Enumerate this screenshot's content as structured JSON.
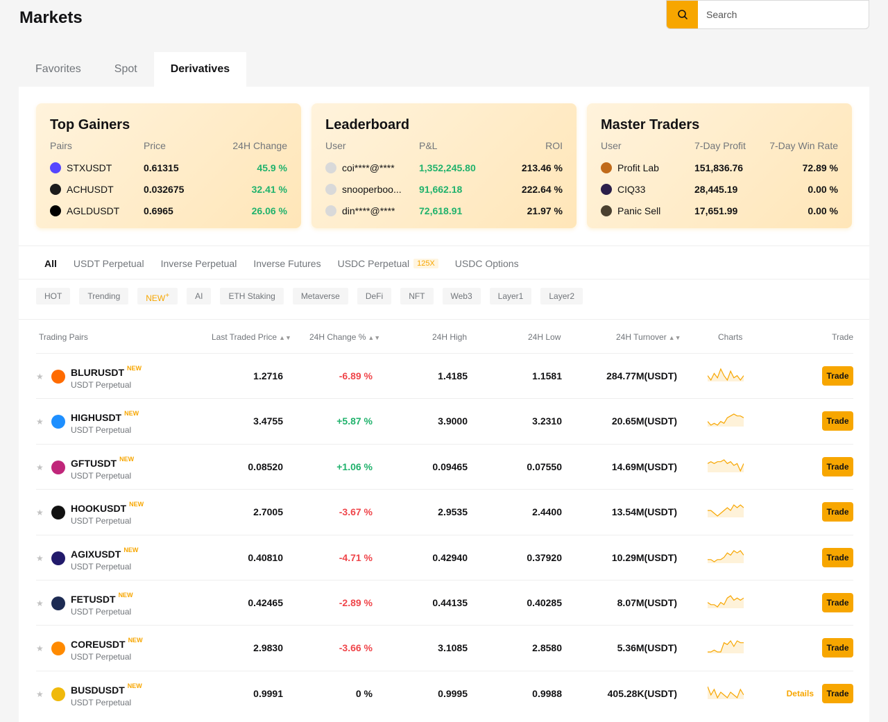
{
  "header": {
    "title": "Markets",
    "search_placeholder": "Search"
  },
  "top_tabs": [
    "Favorites",
    "Spot",
    "Derivatives"
  ],
  "cards": {
    "gainers": {
      "title": "Top Gainers",
      "headers": [
        "Pairs",
        "Price",
        "24H Change"
      ],
      "rows": [
        {
          "name": "STXUSDT",
          "price": "0.61315",
          "change": "45.9 %",
          "color": "#5546ff"
        },
        {
          "name": "ACHUSDT",
          "price": "0.032675",
          "change": "32.41 %",
          "color": "#1c1c1c"
        },
        {
          "name": "AGLDUSDT",
          "price": "0.6965",
          "change": "26.06 %",
          "color": "#000000"
        }
      ]
    },
    "leaderboard": {
      "title": "Leaderboard",
      "headers": [
        "User",
        "P&L",
        "ROI"
      ],
      "rows": [
        {
          "name": "coi****@****",
          "pnl": "1,352,245.80",
          "roi": "213.46 %"
        },
        {
          "name": "snooperboo...",
          "pnl": "91,662.18",
          "roi": "222.64 %"
        },
        {
          "name": "din****@****",
          "pnl": "72,618.91",
          "roi": "21.97 %"
        }
      ]
    },
    "masters": {
      "title": "Master Traders",
      "headers": [
        "User",
        "7-Day Profit",
        "7-Day Win Rate"
      ],
      "rows": [
        {
          "name": "Profit Lab",
          "profit": "151,836.76",
          "rate": "72.89 %",
          "color": "#c06a1a"
        },
        {
          "name": "CIQ33",
          "profit": "28,445.19",
          "rate": "0.00 %",
          "color": "#2b1f4a"
        },
        {
          "name": "Panic Sell",
          "profit": "17,651.99",
          "rate": "0.00 %",
          "color": "#4a4030"
        }
      ]
    }
  },
  "category_tabs": [
    "All",
    "USDT Perpetual",
    "Inverse Perpetual",
    "Inverse Futures",
    "USDC Perpetual",
    "USDC Options"
  ],
  "usdc_badge": "125X",
  "chips": [
    "HOT",
    "Trending",
    "NEW",
    "AI",
    "ETH Staking",
    "Metaverse",
    "DeFi",
    "NFT",
    "Web3",
    "Layer1",
    "Layer2"
  ],
  "table": {
    "headers": {
      "pairs": "Trading Pairs",
      "price": "Last Traded Price",
      "change": "24H Change %",
      "high": "24H High",
      "low": "24H Low",
      "turnover": "24H Turnover",
      "charts": "Charts",
      "trade": "Trade"
    },
    "new_label": "NEW",
    "trade_label": "Trade",
    "details_label": "Details",
    "rows": [
      {
        "symbol": "BLURUSDT",
        "type": "USDT Perpetual",
        "price": "1.2716",
        "change": "-6.89 %",
        "dir": "down",
        "high": "1.4185",
        "low": "1.1581",
        "turnover": "284.77M(USDT)",
        "color": "#ff6b00",
        "spark": [
          5,
          3,
          6,
          4,
          8,
          5,
          3,
          7,
          4,
          5,
          3,
          5
        ]
      },
      {
        "symbol": "HIGHUSDT",
        "type": "USDT Perpetual",
        "price": "3.4755",
        "change": "+5.87 %",
        "dir": "up",
        "high": "3.9000",
        "low": "3.2310",
        "turnover": "20.65M(USDT)",
        "color": "#1e8fff",
        "spark": [
          4,
          2,
          3,
          2,
          4,
          3,
          6,
          7,
          8,
          7,
          7,
          6
        ]
      },
      {
        "symbol": "GFTUSDT",
        "type": "USDT Perpetual",
        "price": "0.08520",
        "change": "+1.06 %",
        "dir": "up",
        "high": "0.09465",
        "low": "0.07550",
        "turnover": "14.69M(USDT)",
        "color": "#c0267a",
        "spark": [
          6,
          7,
          6,
          7,
          7,
          8,
          6,
          7,
          5,
          6,
          2,
          6
        ]
      },
      {
        "symbol": "HOOKUSDT",
        "type": "USDT Perpetual",
        "price": "2.7005",
        "change": "-3.67 %",
        "dir": "down",
        "high": "2.9535",
        "low": "2.4400",
        "turnover": "13.54M(USDT)",
        "color": "#111111",
        "spark": [
          4,
          4,
          3,
          2,
          3,
          4,
          5,
          4,
          6,
          5,
          6,
          5
        ]
      },
      {
        "symbol": "AGIXUSDT",
        "type": "USDT Perpetual",
        "price": "0.40810",
        "change": "-4.71 %",
        "dir": "down",
        "high": "0.42940",
        "low": "0.37920",
        "turnover": "10.29M(USDT)",
        "color": "#221a6b",
        "spark": [
          3,
          3,
          2,
          3,
          3,
          4,
          6,
          5,
          7,
          6,
          7,
          5
        ]
      },
      {
        "symbol": "FETUSDT",
        "type": "USDT Perpetual",
        "price": "0.42465",
        "change": "-2.89 %",
        "dir": "down",
        "high": "0.44135",
        "low": "0.40285",
        "turnover": "8.07M(USDT)",
        "color": "#1d2b53",
        "spark": [
          4,
          3,
          3,
          2,
          4,
          3,
          6,
          7,
          5,
          6,
          5,
          6
        ]
      },
      {
        "symbol": "COREUSDT",
        "type": "USDT Perpetual",
        "price": "2.9830",
        "change": "-3.66 %",
        "dir": "down",
        "high": "3.1085",
        "low": "2.8580",
        "turnover": "5.36M(USDT)",
        "color": "#ff8a00",
        "spark": [
          2,
          2,
          3,
          2,
          2,
          7,
          6,
          8,
          5,
          8,
          7,
          7
        ]
      },
      {
        "symbol": "BUSDUSDT",
        "type": "USDT Perpetual",
        "price": "0.9991",
        "change": "0 %",
        "dir": "flat",
        "high": "0.9995",
        "low": "0.9988",
        "turnover": "405.28K(USDT)",
        "color": "#f0b90b",
        "spark": [
          7,
          4,
          6,
          3,
          5,
          4,
          3,
          5,
          4,
          3,
          6,
          4
        ],
        "details": true
      }
    ]
  }
}
